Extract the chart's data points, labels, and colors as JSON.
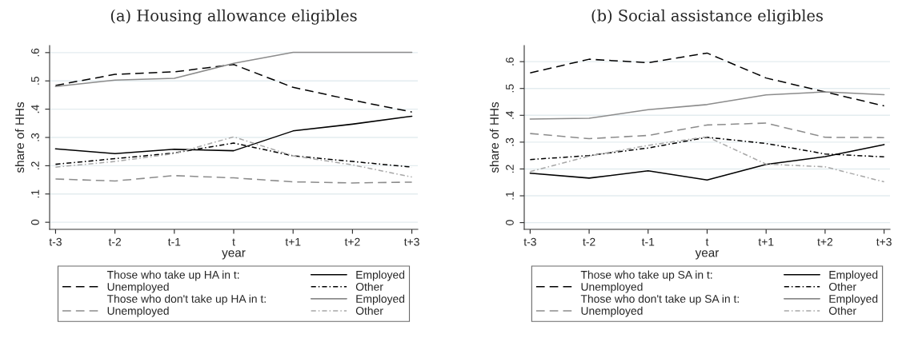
{
  "chart_data": [
    {
      "type": "line",
      "title": "(a) Housing allowance eligibles",
      "xlabel": "year",
      "ylabel": "share of HHs",
      "categories": [
        "t-3",
        "t-2",
        "t-1",
        "t",
        "t+1",
        "t+2",
        "t+3"
      ],
      "ylim": [
        -0.025,
        0.625
      ],
      "yticks": [
        {
          "value": 0,
          "label": "0"
        },
        {
          "value": 0.1,
          "label": ".1"
        },
        {
          "value": 0.2,
          "label": ".2"
        },
        {
          "value": 0.3,
          "label": ".3"
        },
        {
          "value": 0.4,
          "label": ".4"
        },
        {
          "value": 0.5,
          "label": ".5"
        },
        {
          "value": 0.6,
          "label": ".6"
        }
      ],
      "grid": "y",
      "legend": "bottom",
      "marker": "none",
      "annotations": [
        "Those who take up HA in t:",
        "Those who don't take up HA in t:"
      ],
      "series": [
        {
          "name": "Employed",
          "color": "#000000",
          "line_style": "solid",
          "values": [
            0.26,
            0.243,
            0.258,
            0.253,
            0.323,
            0.347,
            0.375
          ]
        },
        {
          "name": "Unemployed",
          "color": "#000000",
          "line_style": "dashed",
          "values": [
            0.484,
            0.523,
            0.532,
            0.558,
            0.477,
            0.432,
            0.39
          ]
        },
        {
          "name": "Other",
          "color": "#000000",
          "line_style": "dotted",
          "values": [
            0.205,
            0.225,
            0.245,
            0.28,
            0.235,
            0.215,
            0.195
          ]
        },
        {
          "name": "Employed",
          "color": "#8c8c8c",
          "line_style": "solid",
          "values": [
            0.48,
            0.503,
            0.509,
            0.562,
            0.601,
            0.601,
            0.601
          ]
        },
        {
          "name": "Unemployed",
          "color": "#8c8c8c",
          "line_style": "dashed",
          "values": [
            0.153,
            0.146,
            0.165,
            0.157,
            0.143,
            0.139,
            0.142
          ]
        },
        {
          "name": "Other",
          "color": "#a8a8a8",
          "line_style": "dotted",
          "values": [
            0.195,
            0.215,
            0.243,
            0.302,
            0.235,
            0.203,
            0.16
          ]
        }
      ]
    },
    {
      "type": "line",
      "title": "(b) Social assistance eligibles",
      "xlabel": "year",
      "ylabel": "share of HHs",
      "categories": [
        "t-3",
        "t-2",
        "t-1",
        "t",
        "t+1",
        "t+2",
        "t+3"
      ],
      "ylim": [
        -0.025,
        0.66
      ],
      "yticks": [
        {
          "value": 0,
          "label": "0"
        },
        {
          "value": 0.1,
          "label": ".1"
        },
        {
          "value": 0.2,
          "label": ".2"
        },
        {
          "value": 0.3,
          "label": ".3"
        },
        {
          "value": 0.4,
          "label": ".4"
        },
        {
          "value": 0.5,
          "label": ".5"
        },
        {
          "value": 0.6,
          "label": ".6"
        }
      ],
      "grid": "y",
      "legend": "bottom",
      "marker": "none",
      "annotations": [
        "Those who take up SA in t:",
        "Those who don't take up SA in t:"
      ],
      "series": [
        {
          "name": "Employed",
          "color": "#000000",
          "line_style": "solid",
          "values": [
            0.184,
            0.166,
            0.193,
            0.159,
            0.217,
            0.246,
            0.291
          ]
        },
        {
          "name": "Unemployed",
          "color": "#000000",
          "line_style": "dashed",
          "values": [
            0.558,
            0.609,
            0.596,
            0.632,
            0.539,
            0.487,
            0.435
          ]
        },
        {
          "name": "Other",
          "color": "#000000",
          "line_style": "dotted",
          "values": [
            0.235,
            0.25,
            0.278,
            0.318,
            0.295,
            0.256,
            0.245
          ]
        },
        {
          "name": "Employed",
          "color": "#8c8c8c",
          "line_style": "solid",
          "values": [
            0.386,
            0.389,
            0.421,
            0.44,
            0.476,
            0.487,
            0.477
          ]
        },
        {
          "name": "Unemployed",
          "color": "#8c8c8c",
          "line_style": "dashed",
          "values": [
            0.332,
            0.313,
            0.325,
            0.364,
            0.371,
            0.318,
            0.317
          ]
        },
        {
          "name": "Other",
          "color": "#a8a8a8",
          "line_style": "dotted",
          "values": [
            0.19,
            0.248,
            0.288,
            0.32,
            0.218,
            0.208,
            0.152
          ]
        }
      ]
    }
  ]
}
